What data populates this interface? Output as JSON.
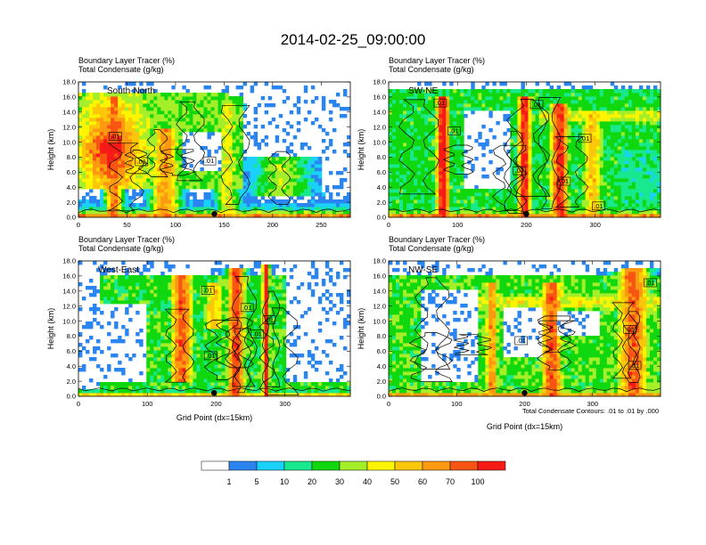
{
  "title": "2014-02-25_09:00:00",
  "subtitle_line1": "Boundary Layer Tracer    (%)",
  "subtitle_line2": "Total Condensate    (g/kg)",
  "ylabel": "Height (km)",
  "xlabel": "Grid Point (dx=15km)",
  "contour_note": "Total Condensate Contours: .01 to .01 by .000",
  "contour_label": ".01",
  "colorbar": {
    "labels": [
      "1",
      "5",
      "10",
      "20",
      "30",
      "40",
      "50",
      "60",
      "70",
      "100"
    ],
    "colors": [
      "#ffffff",
      "#2a85f0",
      "#1ad2f9",
      "#18e88e",
      "#11d80e",
      "#a4ee2a",
      "#fcf400",
      "#fcc70a",
      "#fc9910",
      "#f85412",
      "#f61b16"
    ]
  },
  "chart_data": [
    {
      "type": "heatmap",
      "name": "South-North",
      "title_lines": [
        "Boundary Layer Tracer (%)",
        "Total Condensate (g/kg)"
      ],
      "ylabel": "Height (km)",
      "xlim": [
        0,
        280
      ],
      "ylim": [
        0,
        18
      ],
      "xticks": [
        0,
        50,
        100,
        150,
        200,
        250
      ],
      "yticks": [
        0,
        2,
        4,
        6,
        8,
        10,
        12,
        14,
        16,
        18
      ],
      "surface_point_x": 140,
      "contour_label_positions": [
        [
          38,
          10.8
        ],
        [
          65,
          7.4
        ],
        [
          135,
          7.5
        ]
      ]
    },
    {
      "type": "heatmap",
      "name": "SW-NE",
      "title_lines": [
        "Boundary Layer Tracer (%)",
        "Total Condensate (g/kg)"
      ],
      "ylabel": "Height (km)",
      "xlim": [
        0,
        395
      ],
      "ylim": [
        0,
        18
      ],
      "xticks": [
        0,
        100,
        200,
        300
      ],
      "yticks": [
        0,
        2,
        4,
        6,
        8,
        10,
        12,
        14,
        16,
        18
      ],
      "surface_point_x": 200,
      "contour_label_positions": [
        [
          75,
          15.2
        ],
        [
          95,
          11.5
        ],
        [
          215,
          15.0
        ],
        [
          190,
          6.2
        ],
        [
          285,
          10.5
        ],
        [
          255,
          4.8
        ],
        [
          305,
          1.5
        ]
      ]
    },
    {
      "type": "heatmap",
      "name": "West-East",
      "title_lines": [
        "Boundary Layer Tracer (%)",
        "Total Condensate (g/kg)"
      ],
      "ylabel": "Height (km)",
      "xlabel": "Grid Point (dx=15km)",
      "xlim": [
        0,
        395
      ],
      "ylim": [
        0,
        18
      ],
      "xticks": [
        0,
        100,
        200,
        300
      ],
      "yticks": [
        0,
        2,
        4,
        6,
        8,
        10,
        12,
        14,
        16,
        18
      ],
      "surface_point_x": 197,
      "contour_label_positions": [
        [
          188,
          14.1
        ],
        [
          245,
          11.8
        ],
        [
          277,
          10.2
        ],
        [
          260,
          8.3
        ],
        [
          192,
          5.4
        ]
      ]
    },
    {
      "type": "heatmap",
      "name": "NW-SE",
      "title_lines": [
        "Boundary Layer Tracer (%)",
        "Total Condensate (g/kg)"
      ],
      "ylabel": "Height (km)",
      "xlabel": "Grid Point (dx=15km)",
      "xlim": [
        0,
        400
      ],
      "ylim": [
        0,
        18
      ],
      "xticks": [
        0,
        100,
        200,
        300
      ],
      "yticks": [
        0,
        2,
        4,
        6,
        8,
        10,
        12,
        14,
        16,
        18
      ],
      "surface_point_x": 200,
      "contour_label_positions": [
        [
          195,
          7.4
        ],
        [
          355,
          8.9
        ],
        [
          385,
          15.1
        ],
        [
          362,
          4.1
        ]
      ]
    }
  ]
}
